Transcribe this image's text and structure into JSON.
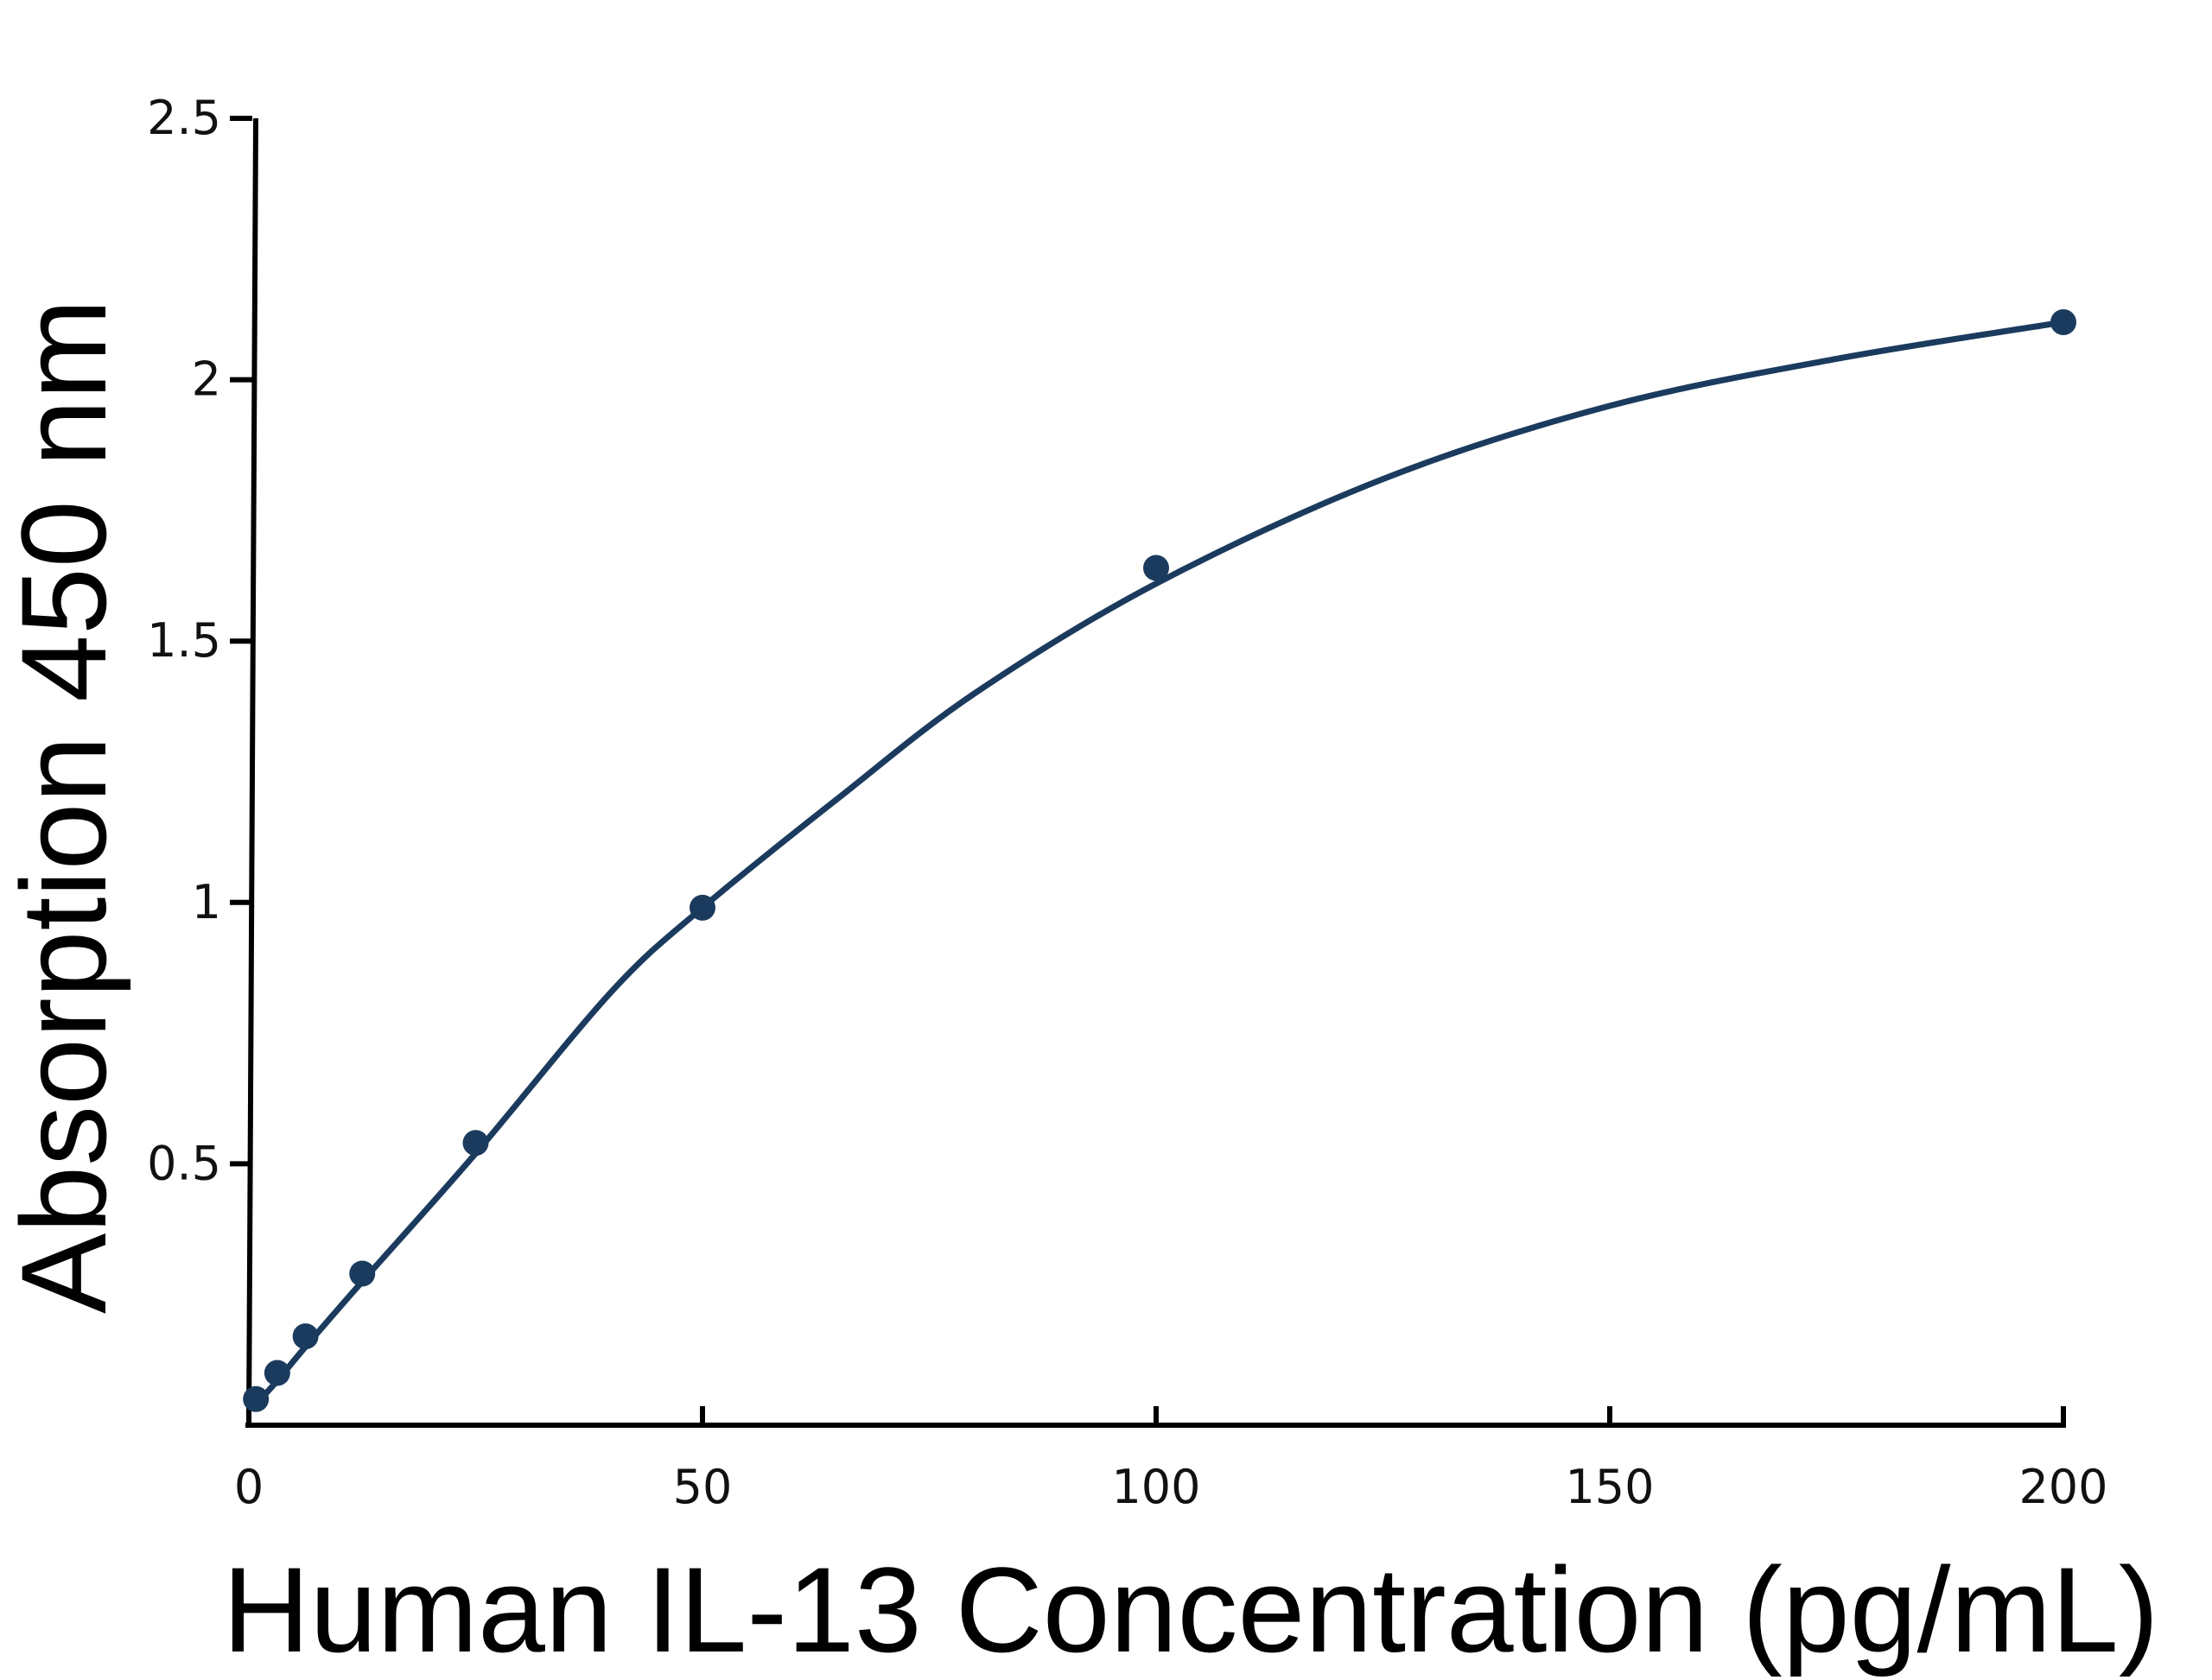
{
  "chart_data": {
    "type": "scatter",
    "title": "",
    "xlabel": "Human IL-13 Concentration (pg/mL)",
    "ylabel": "Absorption 450 nm",
    "xlim": [
      0,
      200
    ],
    "ylim": [
      0,
      2.5
    ],
    "x_ticks": [
      "0",
      "50",
      "100",
      "150",
      "200"
    ],
    "y_ticks": [
      "0.5",
      "1",
      "1.5",
      "2",
      "2.5"
    ],
    "grid": false,
    "legend": "none",
    "series": [
      {
        "x": [
          0.78,
          3.13,
          6.25,
          12.5,
          25,
          50,
          100,
          200
        ],
        "y": [
          0.05,
          0.1,
          0.17,
          0.29,
          0.54,
          0.99,
          1.64,
          2.11
        ]
      }
    ],
    "fit_curve": {
      "x": [
        0.78,
        3.13,
        6.25,
        12.5,
        25,
        40,
        50,
        65,
        80,
        100,
        125,
        150,
        175,
        200
      ],
      "y": [
        0.04,
        0.085,
        0.15,
        0.275,
        0.52,
        0.83,
        0.99,
        1.2,
        1.4,
        1.61,
        1.81,
        1.95,
        2.04,
        2.11
      ]
    },
    "colors": {
      "series": "#1b3b5e",
      "axis": "#000000"
    }
  }
}
